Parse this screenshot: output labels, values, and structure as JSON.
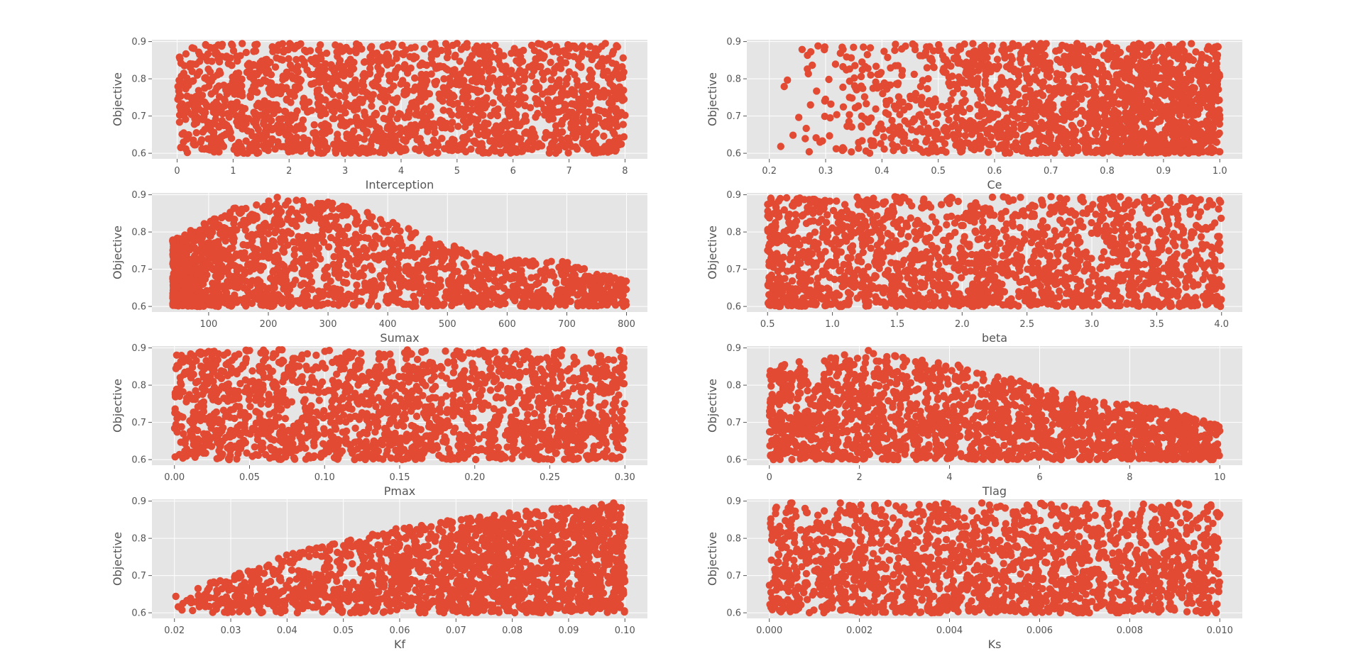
{
  "chart_data": [
    {
      "type": "scatter",
      "xlabel": "Interception",
      "ylabel": "Objective",
      "xlim": [
        -0.45,
        8.4
      ],
      "ylim": [
        0.585,
        0.905
      ],
      "xticks": [
        0,
        1,
        2,
        3,
        4,
        5,
        6,
        7,
        8
      ],
      "xtick_labels": [
        "0",
        "1",
        "2",
        "3",
        "4",
        "5",
        "6",
        "7",
        "8"
      ],
      "yticks": [
        0.6,
        0.7,
        0.8,
        0.9
      ],
      "ytick_labels": [
        "0.6",
        "0.7",
        "0.8",
        "0.9"
      ],
      "grid": true,
      "distribution": {
        "shape": "uniform",
        "x_range": [
          0,
          8
        ],
        "y_range": [
          0.6,
          0.895
        ],
        "n_points": 1800
      },
      "notable_points": [
        {
          "x": 3.25,
          "y": 0.89
        },
        {
          "x": 5.0,
          "y": 0.895
        },
        {
          "x": 4.25,
          "y": 0.885
        }
      ]
    },
    {
      "type": "scatter",
      "xlabel": "Ce",
      "ylabel": "Objective",
      "xlim": [
        0.16,
        1.04
      ],
      "ylim": [
        0.585,
        0.905
      ],
      "xticks": [
        0.2,
        0.3,
        0.4,
        0.5,
        0.6,
        0.7,
        0.8,
        0.9,
        1.0
      ],
      "xtick_labels": [
        "0.2",
        "0.3",
        "0.4",
        "0.5",
        "0.6",
        "0.7",
        "0.8",
        "0.9",
        "1.0"
      ],
      "yticks": [
        0.6,
        0.7,
        0.8,
        0.9
      ],
      "ytick_labels": [
        "0.6",
        "0.7",
        "0.8",
        "0.9"
      ],
      "grid": true,
      "distribution": {
        "shape": "density_increasing_with_x",
        "x_range": [
          0.2,
          1.0
        ],
        "y_range": [
          0.6,
          0.895
        ],
        "n_points": 1800
      },
      "notable_points": [
        {
          "x": 0.72,
          "y": 0.89
        },
        {
          "x": 0.8,
          "y": 0.895
        }
      ]
    },
    {
      "type": "scatter",
      "xlabel": "Sumax",
      "ylabel": "Objective",
      "xlim": [
        5,
        835
      ],
      "ylim": [
        0.585,
        0.905
      ],
      "xticks": [
        100,
        200,
        300,
        400,
        500,
        600,
        700,
        800
      ],
      "xtick_labels": [
        "100",
        "200",
        "300",
        "400",
        "500",
        "600",
        "700",
        "800"
      ],
      "yticks": [
        0.6,
        0.7,
        0.8,
        0.9
      ],
      "ytick_labels": [
        "0.6",
        "0.7",
        "0.8",
        "0.9"
      ],
      "grid": true,
      "distribution": {
        "shape": "peak_near_low_x_declining_upper_envelope",
        "x_range": [
          40,
          800
        ],
        "y_range": [
          0.6,
          0.895
        ],
        "n_points": 1800
      },
      "upper_envelope": [
        [
          40,
          0.78
        ],
        [
          100,
          0.83
        ],
        [
          150,
          0.87
        ],
        [
          215,
          0.895
        ],
        [
          300,
          0.88
        ],
        [
          400,
          0.84
        ],
        [
          500,
          0.77
        ],
        [
          600,
          0.73
        ],
        [
          700,
          0.72
        ],
        [
          800,
          0.67
        ]
      ],
      "notable_points": [
        {
          "x": 215,
          "y": 0.893
        },
        {
          "x": 300,
          "y": 0.88
        }
      ]
    },
    {
      "type": "scatter",
      "xlabel": "beta",
      "ylabel": "Objective",
      "xlim": [
        0.34,
        4.16
      ],
      "ylim": [
        0.585,
        0.905
      ],
      "xticks": [
        0.5,
        1.0,
        1.5,
        2.0,
        2.5,
        3.0,
        3.5,
        4.0
      ],
      "xtick_labels": [
        "0.5",
        "1.0",
        "1.5",
        "2.0",
        "2.5",
        "3.0",
        "3.5",
        "4.0"
      ],
      "yticks": [
        0.6,
        0.7,
        0.8,
        0.9
      ],
      "ytick_labels": [
        "0.6",
        "0.7",
        "0.8",
        "0.9"
      ],
      "grid": true,
      "distribution": {
        "shape": "dense_bottom_left",
        "x_range": [
          0.5,
          4.0
        ],
        "y_range": [
          0.6,
          0.895
        ],
        "n_points": 1800
      },
      "notable_points": [
        {
          "x": 2.45,
          "y": 0.893
        },
        {
          "x": 1.9,
          "y": 0.89
        }
      ]
    },
    {
      "type": "scatter",
      "xlabel": "Pmax",
      "ylabel": "Objective",
      "xlim": [
        -0.015,
        0.315
      ],
      "ylim": [
        0.585,
        0.905
      ],
      "xticks": [
        0.0,
        0.05,
        0.1,
        0.15,
        0.2,
        0.25,
        0.3
      ],
      "xtick_labels": [
        "0.00",
        "0.05",
        "0.10",
        "0.15",
        "0.20",
        "0.25",
        "0.30"
      ],
      "yticks": [
        0.6,
        0.7,
        0.8,
        0.9
      ],
      "ytick_labels": [
        "0.6",
        "0.7",
        "0.8",
        "0.9"
      ],
      "grid": true,
      "distribution": {
        "shape": "uniform",
        "x_range": [
          0.0,
          0.3
        ],
        "y_range": [
          0.6,
          0.895
        ],
        "n_points": 1800
      },
      "notable_points": [
        {
          "x": 0.05,
          "y": 0.893
        },
        {
          "x": 0.19,
          "y": 0.89
        }
      ]
    },
    {
      "type": "scatter",
      "xlabel": "Tlag",
      "ylabel": "Objective",
      "xlim": [
        -0.5,
        10.5
      ],
      "ylim": [
        0.585,
        0.905
      ],
      "xticks": [
        0,
        2,
        4,
        6,
        8,
        10
      ],
      "xtick_labels": [
        "0",
        "2",
        "4",
        "6",
        "8",
        "10"
      ],
      "yticks": [
        0.6,
        0.7,
        0.8,
        0.9
      ],
      "ytick_labels": [
        "0.6",
        "0.7",
        "0.8",
        "0.9"
      ],
      "grid": true,
      "distribution": {
        "shape": "declining_upper_envelope",
        "x_range": [
          0,
          10
        ],
        "y_range": [
          0.6,
          0.895
        ],
        "n_points": 1800
      },
      "upper_envelope": [
        [
          0,
          0.85
        ],
        [
          1,
          0.87
        ],
        [
          2,
          0.89
        ],
        [
          3,
          0.88
        ],
        [
          4,
          0.86
        ],
        [
          5,
          0.83
        ],
        [
          6,
          0.8
        ],
        [
          7,
          0.77
        ],
        [
          8,
          0.75
        ],
        [
          9,
          0.73
        ],
        [
          10,
          0.69
        ]
      ],
      "notable_points": [
        {
          "x": 2.2,
          "y": 0.893
        }
      ]
    },
    {
      "type": "scatter",
      "xlabel": "Kf",
      "ylabel": "Objective",
      "xlim": [
        0.016,
        0.104
      ],
      "ylim": [
        0.585,
        0.905
      ],
      "xticks": [
        0.02,
        0.03,
        0.04,
        0.05,
        0.06,
        0.07,
        0.08,
        0.09,
        0.1
      ],
      "xtick_labels": [
        "0.02",
        "0.03",
        "0.04",
        "0.05",
        "0.06",
        "0.07",
        "0.08",
        "0.09",
        "0.10"
      ],
      "yticks": [
        0.6,
        0.7,
        0.8,
        0.9
      ],
      "ytick_labels": [
        "0.6",
        "0.7",
        "0.8",
        "0.9"
      ],
      "grid": true,
      "distribution": {
        "shape": "rising_upper_envelope",
        "x_range": [
          0.02,
          0.1
        ],
        "y_range": [
          0.6,
          0.895
        ],
        "n_points": 1800
      },
      "upper_envelope": [
        [
          0.02,
          0.65
        ],
        [
          0.03,
          0.7
        ],
        [
          0.04,
          0.76
        ],
        [
          0.05,
          0.79
        ],
        [
          0.06,
          0.83
        ],
        [
          0.07,
          0.85
        ],
        [
          0.08,
          0.87
        ],
        [
          0.09,
          0.885
        ],
        [
          0.1,
          0.895
        ]
      ],
      "notable_points": [
        {
          "x": 0.098,
          "y": 0.895
        }
      ]
    },
    {
      "type": "scatter",
      "xlabel": "Ks",
      "ylabel": "Objective",
      "xlim": [
        -0.0005,
        0.0105
      ],
      "ylim": [
        0.585,
        0.905
      ],
      "xticks": [
        0.0,
        0.002,
        0.004,
        0.006,
        0.008,
        0.01
      ],
      "xtick_labels": [
        "0.000",
        "0.002",
        "0.004",
        "0.006",
        "0.008",
        "0.010"
      ],
      "yticks": [
        0.6,
        0.7,
        0.8,
        0.9
      ],
      "ytick_labels": [
        "0.6",
        "0.7",
        "0.8",
        "0.9"
      ],
      "grid": true,
      "distribution": {
        "shape": "uniform",
        "x_range": [
          0.0,
          0.01
        ],
        "y_range": [
          0.6,
          0.895
        ],
        "n_points": 1800
      },
      "notable_points": [
        {
          "x": 0.0005,
          "y": 0.895
        },
        {
          "x": 0.0098,
          "y": 0.89
        }
      ]
    }
  ],
  "colors": {
    "marker": "#e24a33",
    "panel_background": "#e5e5e5",
    "grid": "#ffffff",
    "text": "#555555"
  }
}
